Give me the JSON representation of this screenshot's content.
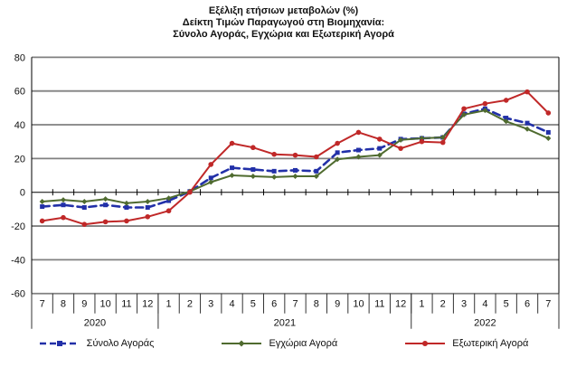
{
  "title": {
    "line1": "Εξέλιξη ετήσιων μεταβολών (%)",
    "line2": "Δείκτη Τιμών Παραγωγού στη Βιομηχανία:",
    "line3": "Σύνολο Αγοράς, Εγχώρια και Εξωτερική Αγορά"
  },
  "chart_data": {
    "type": "line",
    "x_months": [
      "7",
      "8",
      "9",
      "10",
      "11",
      "12",
      "1",
      "2",
      "3",
      "4",
      "5",
      "6",
      "7",
      "8",
      "9",
      "10",
      "11",
      "12",
      "1",
      "2",
      "3",
      "4",
      "5",
      "6",
      "7"
    ],
    "year_groups": [
      {
        "label": "2020",
        "count": 6
      },
      {
        "label": "2021",
        "count": 12
      },
      {
        "label": "2022",
        "count": 7
      }
    ],
    "ylim": [
      -60,
      80
    ],
    "ytick_step": 20,
    "yticks": [
      80,
      60,
      40,
      20,
      0,
      -20,
      -40,
      -60
    ],
    "grid": "horizontal-only",
    "legend_position": "bottom",
    "series": [
      {
        "name": "Σύνολο Αγοράς",
        "color": "#2230A8",
        "style": "dashed",
        "marker": "square",
        "values": [
          -8.5,
          -7.5,
          -9,
          -7.5,
          -9,
          -9,
          -5,
          0.5,
          8.5,
          14.5,
          13.5,
          12.5,
          13,
          12.5,
          23.5,
          25,
          26,
          31.5,
          32,
          32.5,
          46.5,
          49.5,
          44,
          41,
          35.5
        ]
      },
      {
        "name": "Εγχώρια Αγορά",
        "color": "#4F6B2F",
        "style": "solid",
        "marker": "diamond",
        "values": [
          -5.5,
          -4.5,
          -5.5,
          -4,
          -6.5,
          -5.5,
          -3.5,
          0.5,
          6,
          10,
          9.5,
          9,
          9.5,
          9.5,
          19.5,
          21,
          22,
          31,
          32,
          32.5,
          46,
          48.5,
          42,
          37.5,
          32
        ]
      },
      {
        "name": "Εξωτερική Αγορά",
        "color": "#C02828",
        "style": "solid",
        "marker": "circle",
        "values": [
          -17,
          -15,
          -19,
          -17.5,
          -17,
          -14.5,
          -11,
          0,
          16.5,
          29,
          26.5,
          22.5,
          22,
          21,
          29,
          35.5,
          31.5,
          26,
          30,
          29.5,
          49.5,
          52.5,
          54.5,
          59.5,
          47
        ]
      }
    ],
    "colors": {
      "gridline": "#808080",
      "axis": "#000000",
      "text": "#111111"
    }
  }
}
